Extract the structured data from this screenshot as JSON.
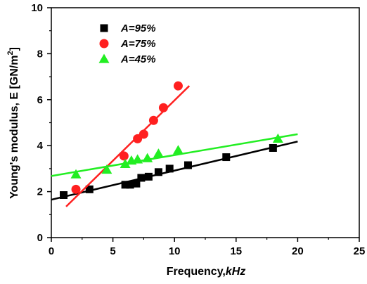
{
  "chart_data": {
    "type": "scatter",
    "xlabel": "Frequency,",
    "xlabel_unit": "kHz",
    "ylabel": "Young's modulus, E [GN/m",
    "ylabel_sup": "2",
    "ylabel_end": "]",
    "xlim": [
      0,
      25
    ],
    "ylim": [
      0,
      10
    ],
    "xticks": [
      0,
      5,
      10,
      15,
      20,
      25
    ],
    "yticks": [
      0,
      2,
      4,
      6,
      8,
      10
    ],
    "grid": false,
    "legend_position": "top-left",
    "series": [
      {
        "name": "A=95%",
        "marker": "square",
        "color": "#000000",
        "x": [
          1.0,
          3.1,
          6.0,
          6.4,
          6.9,
          7.3,
          7.9,
          8.7,
          9.6,
          11.1,
          14.2,
          18.0
        ],
        "y": [
          1.85,
          2.1,
          2.3,
          2.3,
          2.35,
          2.6,
          2.65,
          2.85,
          3.0,
          3.15,
          3.5,
          3.9
        ],
        "fit": [
          [
            0,
            1.65
          ],
          [
            20,
            4.18
          ]
        ]
      },
      {
        "name": "A=75%",
        "marker": "circle",
        "color": "#ff2020",
        "x": [
          2.0,
          5.9,
          7.0,
          7.5,
          8.3,
          9.1,
          10.3
        ],
        "y": [
          2.1,
          3.55,
          4.3,
          4.5,
          5.1,
          5.65,
          6.6
        ],
        "fit": [
          [
            1.2,
            1.35
          ],
          [
            11.2,
            6.6
          ]
        ]
      },
      {
        "name": "A=45%",
        "marker": "triangle",
        "color": "#22ee22",
        "x": [
          2.0,
          4.5,
          6.0,
          6.5,
          7.0,
          7.8,
          8.7,
          10.3,
          18.4
        ],
        "y": [
          2.75,
          2.95,
          3.2,
          3.35,
          3.4,
          3.45,
          3.65,
          3.8,
          4.3
        ],
        "fit": [
          [
            0,
            2.68
          ],
          [
            20,
            4.5
          ]
        ]
      }
    ]
  }
}
